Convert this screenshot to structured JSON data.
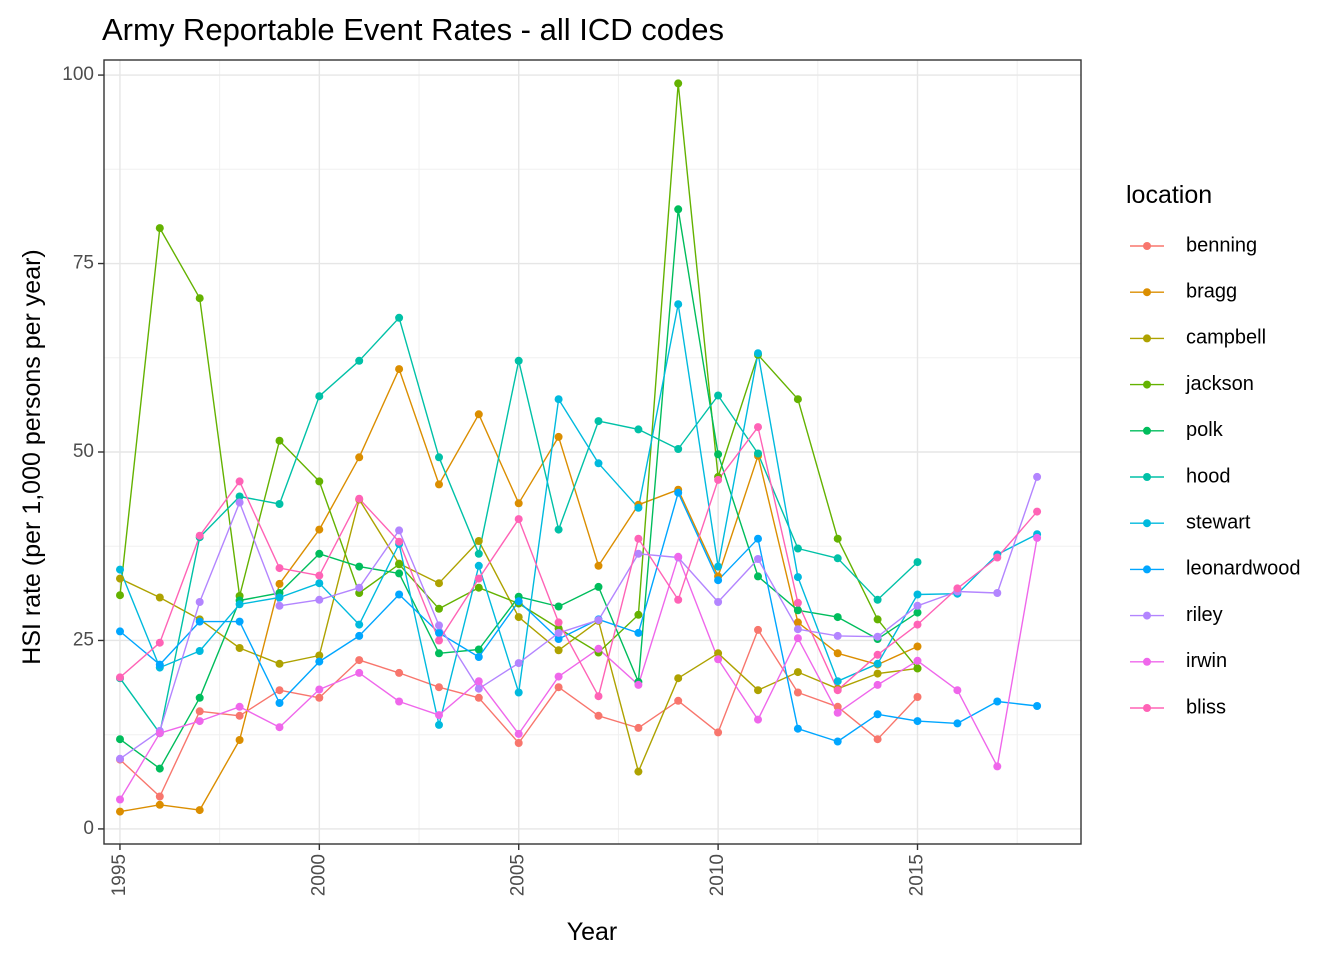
{
  "chart_data": {
    "type": "line",
    "title": "Army Reportable Event Rates - all ICD codes",
    "xlabel": "Year",
    "ylabel": "HSI rate (per 1,000 persons per year)",
    "xlim": [
      1994.6,
      2019.1
    ],
    "ylim": [
      -2,
      102
    ],
    "x_ticks": [
      1995,
      2000,
      2005,
      2010,
      2015
    ],
    "y_ticks": [
      0,
      25,
      50,
      75,
      100
    ],
    "grid": true,
    "legend_title": "location",
    "legend_position": "right",
    "series": [
      {
        "name": "benning",
        "color": "#F8766D",
        "points": [
          [
            1995,
            9.2
          ],
          [
            1996,
            4.3
          ],
          [
            1997,
            15.6
          ],
          [
            1998,
            15.0
          ],
          [
            1999,
            18.4
          ],
          [
            2000,
            17.4
          ],
          [
            2001,
            22.4
          ],
          [
            2002,
            20.7
          ],
          [
            2003,
            18.8
          ],
          [
            2004,
            17.4
          ],
          [
            2005,
            11.4
          ],
          [
            2006,
            18.8
          ],
          [
            2007,
            15.0
          ],
          [
            2008,
            13.4
          ],
          [
            2009,
            17.0
          ],
          [
            2010,
            12.8
          ],
          [
            2011,
            26.4
          ],
          [
            2012,
            18.1
          ],
          [
            2013,
            16.2
          ],
          [
            2014,
            11.9
          ],
          [
            2015,
            17.5
          ]
        ]
      },
      {
        "name": "bragg",
        "color": "#DB8E00",
        "points": [
          [
            1995,
            2.3
          ],
          [
            1996,
            3.2
          ],
          [
            1997,
            2.5
          ],
          [
            1998,
            11.8
          ],
          [
            1999,
            32.5
          ],
          [
            2000,
            39.7
          ],
          [
            2001,
            49.3
          ],
          [
            2002,
            61.0
          ],
          [
            2003,
            45.7
          ],
          [
            2004,
            55.0
          ],
          [
            2005,
            43.2
          ],
          [
            2006,
            52.0
          ],
          [
            2007,
            34.9
          ],
          [
            2008,
            43.0
          ],
          [
            2009,
            45.0
          ],
          [
            2010,
            33.5
          ],
          [
            2011,
            49.5
          ],
          [
            2012,
            27.4
          ],
          [
            2013,
            23.3
          ],
          [
            2014,
            21.8
          ],
          [
            2015,
            24.2
          ]
        ]
      },
      {
        "name": "campbell",
        "color": "#AEA200",
        "points": [
          [
            1995,
            33.2
          ],
          [
            1996,
            30.7
          ],
          [
            1997,
            27.8
          ],
          [
            1998,
            24.0
          ],
          [
            1999,
            21.9
          ],
          [
            2000,
            23.0
          ],
          [
            2001,
            43.7
          ],
          [
            2002,
            35.2
          ],
          [
            2003,
            32.6
          ],
          [
            2004,
            38.2
          ],
          [
            2005,
            28.1
          ],
          [
            2006,
            23.7
          ],
          [
            2007,
            27.6
          ],
          [
            2008,
            7.6
          ],
          [
            2009,
            20.0
          ],
          [
            2010,
            23.3
          ],
          [
            2011,
            18.4
          ],
          [
            2012,
            20.8
          ],
          [
            2013,
            18.6
          ],
          [
            2014,
            20.6
          ],
          [
            2015,
            21.3
          ]
        ]
      },
      {
        "name": "jackson",
        "color": "#64B200",
        "points": [
          [
            1995,
            31.0
          ],
          [
            1996,
            79.7
          ],
          [
            1997,
            70.4
          ],
          [
            1998,
            30.9
          ],
          [
            1999,
            51.5
          ],
          [
            2000,
            46.1
          ],
          [
            2001,
            31.3
          ],
          [
            2002,
            35.1
          ],
          [
            2003,
            29.2
          ],
          [
            2004,
            32.0
          ],
          [
            2005,
            29.9
          ],
          [
            2006,
            26.6
          ],
          [
            2007,
            23.4
          ],
          [
            2008,
            28.4
          ],
          [
            2009,
            98.9
          ],
          [
            2010,
            46.7
          ],
          [
            2011,
            62.9
          ],
          [
            2012,
            57.0
          ],
          [
            2013,
            38.5
          ],
          [
            2014,
            27.8
          ],
          [
            2015,
            21.3
          ]
        ]
      },
      {
        "name": "polk",
        "color": "#00BD5C",
        "points": [
          [
            1995,
            11.9
          ],
          [
            1996,
            8.0
          ],
          [
            1997,
            17.4
          ],
          [
            1998,
            30.3
          ],
          [
            1999,
            31.3
          ],
          [
            2000,
            36.5
          ],
          [
            2001,
            34.8
          ],
          [
            2002,
            33.9
          ],
          [
            2003,
            23.3
          ],
          [
            2004,
            23.8
          ],
          [
            2005,
            30.8
          ],
          [
            2006,
            29.5
          ],
          [
            2007,
            32.1
          ],
          [
            2008,
            19.5
          ],
          [
            2009,
            82.2
          ],
          [
            2010,
            49.7
          ],
          [
            2011,
            33.5
          ],
          [
            2012,
            29.0
          ],
          [
            2013,
            28.1
          ],
          [
            2014,
            25.2
          ],
          [
            2015,
            28.7
          ]
        ]
      },
      {
        "name": "hood",
        "color": "#00C1A7",
        "points": [
          [
            1995,
            20.0
          ],
          [
            1996,
            12.7
          ],
          [
            1997,
            38.7
          ],
          [
            1998,
            44.1
          ],
          [
            1999,
            43.1
          ],
          [
            2000,
            57.4
          ],
          [
            2001,
            62.1
          ],
          [
            2002,
            67.8
          ],
          [
            2003,
            49.3
          ],
          [
            2004,
            36.5
          ],
          [
            2005,
            62.1
          ],
          [
            2006,
            39.7
          ],
          [
            2007,
            54.1
          ],
          [
            2008,
            53.0
          ],
          [
            2009,
            50.4
          ],
          [
            2010,
            57.5
          ],
          [
            2011,
            49.8
          ],
          [
            2012,
            37.2
          ],
          [
            2013,
            35.9
          ],
          [
            2014,
            30.4
          ],
          [
            2015,
            35.4
          ]
        ]
      },
      {
        "name": "stewart",
        "color": "#00BADE",
        "points": [
          [
            1995,
            34.4
          ],
          [
            1996,
            21.4
          ],
          [
            1997,
            23.6
          ],
          [
            1998,
            29.8
          ],
          [
            1999,
            30.7
          ],
          [
            2000,
            32.6
          ],
          [
            2001,
            27.1
          ],
          [
            2002,
            37.8
          ],
          [
            2003,
            13.8
          ],
          [
            2004,
            34.9
          ],
          [
            2005,
            18.1
          ],
          [
            2006,
            57.0
          ],
          [
            2007,
            48.5
          ],
          [
            2008,
            42.6
          ],
          [
            2009,
            69.6
          ],
          [
            2010,
            34.8
          ],
          [
            2011,
            63.1
          ],
          [
            2012,
            33.4
          ],
          [
            2013,
            19.6
          ],
          [
            2014,
            21.9
          ],
          [
            2015,
            31.1
          ],
          [
            2016,
            31.2
          ],
          [
            2017,
            36.4
          ],
          [
            2018,
            39.1
          ]
        ]
      },
      {
        "name": "leonardwood",
        "color": "#00A6FF",
        "points": [
          [
            1995,
            26.2
          ],
          [
            1996,
            21.8
          ],
          [
            1997,
            27.5
          ],
          [
            1998,
            27.5
          ],
          [
            1999,
            16.7
          ],
          [
            2000,
            22.2
          ],
          [
            2001,
            25.6
          ],
          [
            2002,
            31.1
          ],
          [
            2003,
            26.0
          ],
          [
            2004,
            22.8
          ],
          [
            2005,
            30.2
          ],
          [
            2006,
            25.2
          ],
          [
            2007,
            27.8
          ],
          [
            2008,
            26.0
          ],
          [
            2009,
            44.6
          ],
          [
            2010,
            33.0
          ],
          [
            2011,
            38.5
          ],
          [
            2012,
            13.3
          ],
          [
            2013,
            11.6
          ],
          [
            2014,
            15.2
          ],
          [
            2015,
            14.3
          ],
          [
            2016,
            14.0
          ],
          [
            2017,
            16.9
          ],
          [
            2018,
            16.3
          ]
        ]
      },
      {
        "name": "riley",
        "color": "#B385FF",
        "points": [
          [
            1995,
            9.3
          ],
          [
            1996,
            13.0
          ],
          [
            1997,
            30.1
          ],
          [
            1998,
            43.3
          ],
          [
            1999,
            29.6
          ],
          [
            2000,
            30.4
          ],
          [
            2001,
            32.0
          ],
          [
            2002,
            39.6
          ],
          [
            2003,
            27.0
          ],
          [
            2004,
            18.6
          ],
          [
            2005,
            22.0
          ],
          [
            2006,
            26.0
          ],
          [
            2007,
            27.7
          ],
          [
            2008,
            36.5
          ],
          [
            2009,
            36.0
          ],
          [
            2010,
            30.1
          ],
          [
            2011,
            35.8
          ],
          [
            2012,
            26.5
          ],
          [
            2013,
            25.6
          ],
          [
            2014,
            25.5
          ],
          [
            2015,
            29.6
          ],
          [
            2016,
            31.5
          ],
          [
            2017,
            31.3
          ],
          [
            2018,
            46.7
          ]
        ]
      },
      {
        "name": "irwin",
        "color": "#EF67EB",
        "points": [
          [
            1995,
            3.9
          ],
          [
            1996,
            12.7
          ],
          [
            1997,
            14.3
          ],
          [
            1998,
            16.2
          ],
          [
            1999,
            13.5
          ],
          [
            2000,
            18.5
          ],
          [
            2001,
            20.7
          ],
          [
            2002,
            16.9
          ],
          [
            2003,
            15.1
          ],
          [
            2004,
            19.6
          ],
          [
            2005,
            12.6
          ],
          [
            2006,
            20.2
          ],
          [
            2007,
            23.9
          ],
          [
            2008,
            19.1
          ],
          [
            2009,
            36.1
          ],
          [
            2010,
            22.5
          ],
          [
            2011,
            14.5
          ],
          [
            2012,
            25.3
          ],
          [
            2013,
            15.4
          ],
          [
            2014,
            19.1
          ],
          [
            2015,
            22.3
          ],
          [
            2016,
            18.4
          ],
          [
            2017,
            8.3
          ],
          [
            2018,
            38.6
          ]
        ]
      },
      {
        "name": "bliss",
        "color": "#FF63B6",
        "points": [
          [
            1995,
            20.1
          ],
          [
            1996,
            24.7
          ],
          [
            1997,
            38.9
          ],
          [
            1998,
            46.1
          ],
          [
            1999,
            34.6
          ],
          [
            2000,
            33.6
          ],
          [
            2001,
            43.8
          ],
          [
            2002,
            38.1
          ],
          [
            2003,
            25.0
          ],
          [
            2004,
            33.2
          ],
          [
            2005,
            41.1
          ],
          [
            2006,
            27.4
          ],
          [
            2007,
            17.6
          ],
          [
            2008,
            38.5
          ],
          [
            2009,
            30.4
          ],
          [
            2010,
            46.3
          ],
          [
            2011,
            53.3
          ],
          [
            2012,
            30.0
          ],
          [
            2013,
            18.4
          ],
          [
            2014,
            23.1
          ],
          [
            2015,
            27.1
          ],
          [
            2016,
            31.9
          ],
          [
            2017,
            36.0
          ],
          [
            2018,
            42.1
          ]
        ]
      }
    ]
  }
}
